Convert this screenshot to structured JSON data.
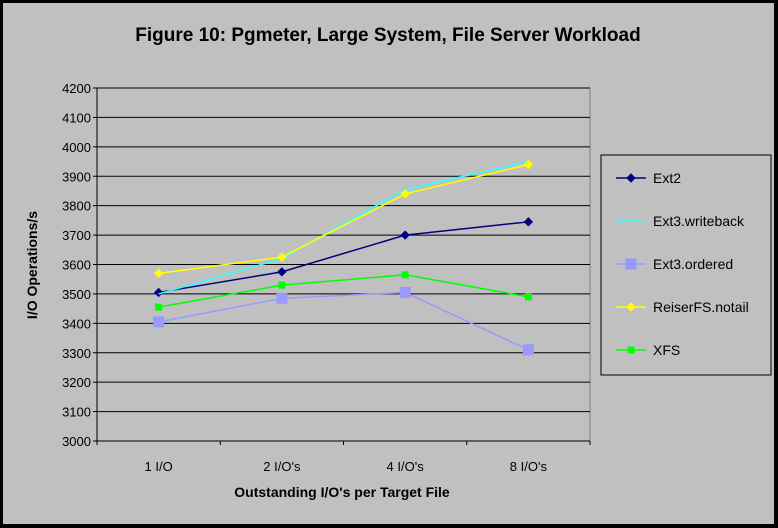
{
  "chart_data": {
    "type": "line",
    "title": "Figure 10: Pgmeter, Large System, File Server Workload",
    "xlabel": "Outstanding I/O's per Target File",
    "ylabel": "I/O Operations/s",
    "categories": [
      "1 I/O",
      "2 I/O's",
      "4 I/O's",
      "8 I/O's"
    ],
    "ylim": [
      3000,
      4200
    ],
    "yticks": [
      3000,
      3100,
      3200,
      3300,
      3400,
      3500,
      3600,
      3700,
      3800,
      3900,
      4000,
      4100,
      4200
    ],
    "grid": true,
    "legend_position": "right",
    "series": [
      {
        "name": "Ext2",
        "values": [
          3505,
          3575,
          3700,
          3745
        ],
        "color": "#000080",
        "marker": "diamond"
      },
      {
        "name": "Ext3.writeback",
        "values": [
          3500,
          3620,
          3855,
          3950
        ],
        "color": "#33ffff",
        "marker": "none"
      },
      {
        "name": "Ext3.ordered",
        "values": [
          3405,
          3485,
          3505,
          3310
        ],
        "color": "#9999ff",
        "marker": "square"
      },
      {
        "name": "ReiserFS.notail",
        "values": [
          3570,
          3625,
          3840,
          3940
        ],
        "color": "#ffff00",
        "marker": "diamond"
      },
      {
        "name": "XFS",
        "values": [
          3455,
          3530,
          3565,
          3490
        ],
        "color": "#00ff00",
        "marker": "square"
      }
    ]
  }
}
